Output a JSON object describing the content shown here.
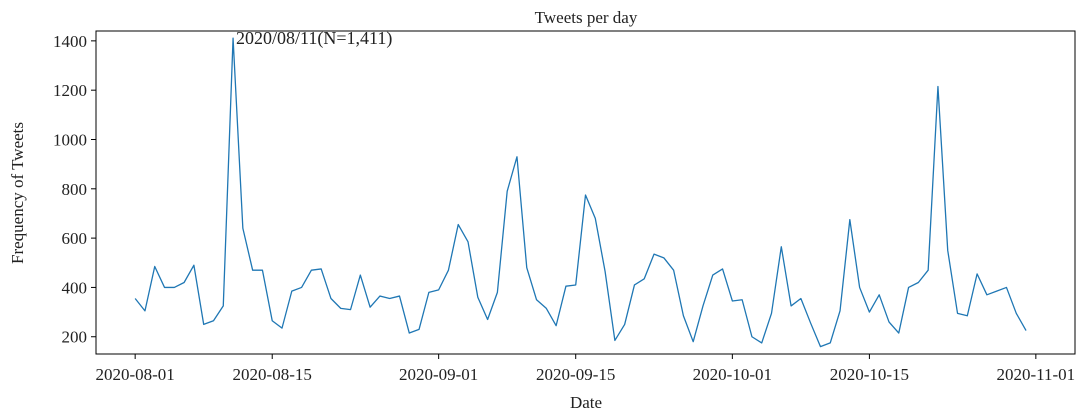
{
  "chart_data": {
    "type": "line",
    "title": "Tweets per day",
    "xlabel": "Date",
    "ylabel": "Frequency of Tweets",
    "x_tick_labels": [
      "2020-08-01",
      "2020-08-15",
      "2020-09-01",
      "2020-09-15",
      "2020-10-01",
      "2020-10-15",
      "2020-11-01"
    ],
    "y_tick_labels": [
      "200",
      "400",
      "600",
      "800",
      "1000",
      "1200",
      "1400"
    ],
    "ylim": [
      130,
      1440
    ],
    "xlim": [
      "2020-07-28",
      "2020-11-05"
    ],
    "grid": false,
    "line_color": "#1f77b4",
    "annotation": {
      "text": "2020/08/11(N=1,411)",
      "x": "2020-08-11",
      "y": 1411
    },
    "series": [
      {
        "x": [
          "2020-08-01",
          "2020-08-02",
          "2020-08-03",
          "2020-08-04",
          "2020-08-05",
          "2020-08-06",
          "2020-08-07",
          "2020-08-08",
          "2020-08-09",
          "2020-08-10",
          "2020-08-11",
          "2020-08-12",
          "2020-08-13",
          "2020-08-14",
          "2020-08-15",
          "2020-08-16",
          "2020-08-17",
          "2020-08-18",
          "2020-08-19",
          "2020-08-20",
          "2020-08-21",
          "2020-08-22",
          "2020-08-23",
          "2020-08-24",
          "2020-08-25",
          "2020-08-26",
          "2020-08-27",
          "2020-08-28",
          "2020-08-29",
          "2020-08-30",
          "2020-08-31",
          "2020-09-01",
          "2020-09-02",
          "2020-09-03",
          "2020-09-04",
          "2020-09-05",
          "2020-09-06",
          "2020-09-07",
          "2020-09-08",
          "2020-09-09",
          "2020-09-10",
          "2020-09-11",
          "2020-09-12",
          "2020-09-13",
          "2020-09-14",
          "2020-09-15",
          "2020-09-16",
          "2020-09-17",
          "2020-09-18",
          "2020-09-19",
          "2020-09-20",
          "2020-09-21",
          "2020-09-22",
          "2020-09-23",
          "2020-09-24",
          "2020-09-25",
          "2020-09-26",
          "2020-09-27",
          "2020-09-28",
          "2020-09-29",
          "2020-09-30",
          "2020-10-01",
          "2020-10-02",
          "2020-10-03",
          "2020-10-04",
          "2020-10-05",
          "2020-10-06",
          "2020-10-07",
          "2020-10-08",
          "2020-10-09",
          "2020-10-10",
          "2020-10-11",
          "2020-10-12",
          "2020-10-13",
          "2020-10-14",
          "2020-10-15",
          "2020-10-16",
          "2020-10-17",
          "2020-10-18",
          "2020-10-19",
          "2020-10-20",
          "2020-10-21",
          "2020-10-22",
          "2020-10-23",
          "2020-10-24",
          "2020-10-25",
          "2020-10-26",
          "2020-10-27",
          "2020-10-28",
          "2020-10-29",
          "2020-10-30",
          "2020-10-31"
        ],
        "values": [
          355,
          305,
          485,
          400,
          400,
          420,
          490,
          250,
          265,
          325,
          1411,
          640,
          470,
          470,
          265,
          235,
          385,
          400,
          470,
          475,
          355,
          315,
          310,
          450,
          320,
          365,
          355,
          365,
          215,
          230,
          380,
          390,
          470,
          655,
          585,
          360,
          270,
          380,
          790,
          930,
          480,
          350,
          315,
          245,
          405,
          410,
          775,
          680,
          465,
          185,
          250,
          410,
          435,
          535,
          520,
          470,
          285,
          180,
          325,
          450,
          475,
          345,
          350,
          200,
          175,
          295,
          565,
          325,
          355,
          255,
          160,
          175,
          305,
          675,
          400,
          300,
          370,
          260,
          215,
          400,
          420,
          470,
          1215,
          550,
          295,
          285,
          455,
          370,
          385,
          400,
          295,
          225
        ]
      }
    ]
  }
}
